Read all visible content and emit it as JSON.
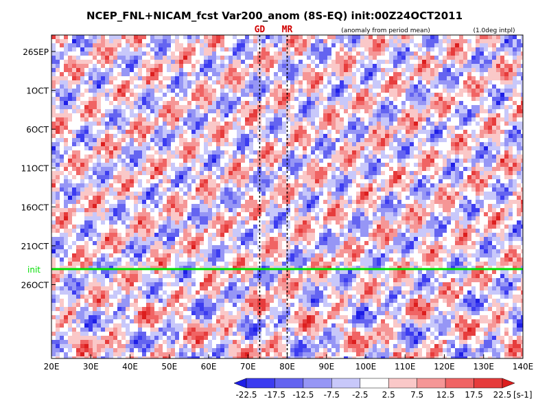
{
  "chart_data": {
    "type": "heatmap",
    "title": "NCEP_FNL+NICAM_fcst Var200_anom (8S-EQ) init:00Z24OCT2011",
    "subtitle": "(anomaly from period mean)",
    "note": "(1.0deg intpl)",
    "x_ticks": [
      "20E",
      "30E",
      "40E",
      "50E",
      "60E",
      "70E",
      "80E",
      "90E",
      "100E",
      "110E",
      "120E",
      "130E",
      "140E"
    ],
    "xlim": [
      "20E",
      "140E"
    ],
    "y_ticks": [
      "26SEP",
      "1OCT",
      "6OCT",
      "11OCT",
      "16OCT",
      "21OCT",
      "26OCT"
    ],
    "init_label": "init",
    "init_date": "24OCT2011",
    "markers": [
      {
        "label": "GD",
        "lon": "73E"
      },
      {
        "label": "MR",
        "lon": "80E"
      }
    ],
    "colorbar": {
      "levels": [
        "-22.5",
        "-17.5",
        "-12.5",
        "-7.5",
        "-2.5",
        "2.5",
        "7.5",
        "12.5",
        "17.5",
        "22.5"
      ],
      "unit": "[s-1]",
      "colors": [
        "#1e1ee6",
        "#3c3cf0",
        "#6464f0",
        "#9696f5",
        "#c8c8fa",
        "#ffffff",
        "#fac8c8",
        "#f59696",
        "#f06464",
        "#e63c3c",
        "#dc1e1e"
      ]
    },
    "init_line_color": "#00dd00"
  }
}
